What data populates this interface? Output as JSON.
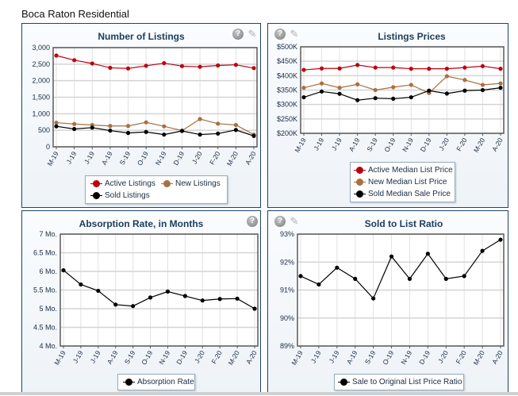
{
  "page": {
    "title": "Boca Raton Residential"
  },
  "colors": {
    "active": "#c00010",
    "new": "#a87040",
    "sold": "#000000",
    "title": "#1c3c5c"
  },
  "icons": {
    "help": "help-icon",
    "settings": "settings-wrench-icon"
  },
  "chart_data": [
    {
      "id": "listings",
      "type": "line",
      "title": "Number of Listings",
      "categories": [
        "M-19",
        "J-19",
        "J-19",
        "A-19",
        "S-19",
        "O-19",
        "N-19",
        "D-19",
        "J-20",
        "F-20",
        "M-20",
        "A-20"
      ],
      "ylim": [
        0,
        3000
      ],
      "yticks": [
        0,
        500,
        1000,
        1500,
        2000,
        2500,
        3000
      ],
      "ytick_labels": [
        "0",
        "500",
        "1,000",
        "1,500",
        "2,000",
        "2,500",
        "3,000"
      ],
      "grid": true,
      "legend_position": "bottom",
      "series": [
        {
          "name": "Active Listings",
          "color": "#c00010",
          "values": [
            2760,
            2620,
            2520,
            2390,
            2370,
            2450,
            2530,
            2440,
            2420,
            2460,
            2480,
            2380
          ]
        },
        {
          "name": "New Listings",
          "color": "#a87040",
          "values": [
            730,
            690,
            660,
            630,
            630,
            740,
            620,
            490,
            840,
            700,
            660,
            370
          ]
        },
        {
          "name": "Sold Listings",
          "color": "#000000",
          "values": [
            620,
            540,
            580,
            490,
            420,
            450,
            370,
            480,
            370,
            400,
            510,
            330
          ]
        }
      ]
    },
    {
      "id": "prices",
      "type": "line",
      "title": "Listings Prices",
      "categories": [
        "M-19",
        "J-19",
        "J-19",
        "A-19",
        "S-19",
        "O-19",
        "N-19",
        "D-19",
        "J-20",
        "F-20",
        "M-20",
        "A-20"
      ],
      "ylim": [
        200,
        500
      ],
      "yticks": [
        200,
        250,
        300,
        350,
        400,
        450,
        500
      ],
      "ytick_labels": [
        "$200K",
        "$250K",
        "$300K",
        "$350K",
        "$400K",
        "$450K",
        "$500K"
      ],
      "ylabel_unit": "$K",
      "grid": true,
      "legend_position": "bottom",
      "series": [
        {
          "name": "Active Median List Price",
          "color": "#c00010",
          "values": [
            420,
            425,
            425,
            437,
            428,
            428,
            424,
            424,
            424,
            428,
            433,
            424
          ]
        },
        {
          "name": "New Median List Price",
          "color": "#a87040",
          "values": [
            358,
            373,
            358,
            370,
            350,
            360,
            368,
            340,
            398,
            385,
            368,
            373
          ]
        },
        {
          "name": "Sold Median Sale Price",
          "color": "#000000",
          "values": [
            325,
            345,
            337,
            315,
            322,
            320,
            325,
            348,
            338,
            348,
            350,
            358
          ]
        }
      ]
    },
    {
      "id": "absorption",
      "type": "line",
      "title": "Absorption Rate, in Months",
      "categories": [
        "M-19",
        "J-19",
        "J-19",
        "A-19",
        "S-19",
        "O-19",
        "N-19",
        "D-19",
        "J-20",
        "F-20",
        "M-20",
        "A-20"
      ],
      "ylim": [
        4,
        7
      ],
      "yticks": [
        4,
        4.5,
        5,
        5.5,
        6,
        6.5,
        7
      ],
      "ytick_labels": [
        "4 Mo.",
        "4.5 Mo.",
        "5 Mo.",
        "5.5 Mo.",
        "6 Mo.",
        "6.5 Mo.",
        "7 Mo."
      ],
      "grid": true,
      "legend_position": "bottom",
      "series": [
        {
          "name": "Absorption Rate",
          "color": "#000000",
          "values": [
            6.03,
            5.65,
            5.48,
            5.11,
            5.07,
            5.3,
            5.46,
            5.34,
            5.22,
            5.26,
            5.27,
            5.0
          ]
        }
      ]
    },
    {
      "id": "ratio",
      "type": "line",
      "title": "Sold to List Ratio",
      "categories": [
        "M-19",
        "J-19",
        "J-19",
        "A-19",
        "S-19",
        "O-19",
        "N-19",
        "D-19",
        "J-20",
        "F-20",
        "M-20",
        "A-20"
      ],
      "ylim": [
        89,
        93
      ],
      "yticks": [
        89,
        90,
        91,
        92,
        93
      ],
      "ytick_labels": [
        "89%",
        "90%",
        "91%",
        "92%",
        "93%"
      ],
      "grid": true,
      "legend_position": "bottom",
      "series": [
        {
          "name": "Sale to Original List Price Ratio",
          "color": "#000000",
          "values": [
            91.5,
            91.2,
            91.8,
            91.4,
            90.7,
            92.2,
            91.4,
            92.3,
            91.4,
            91.5,
            92.4,
            92.8
          ]
        }
      ]
    }
  ]
}
